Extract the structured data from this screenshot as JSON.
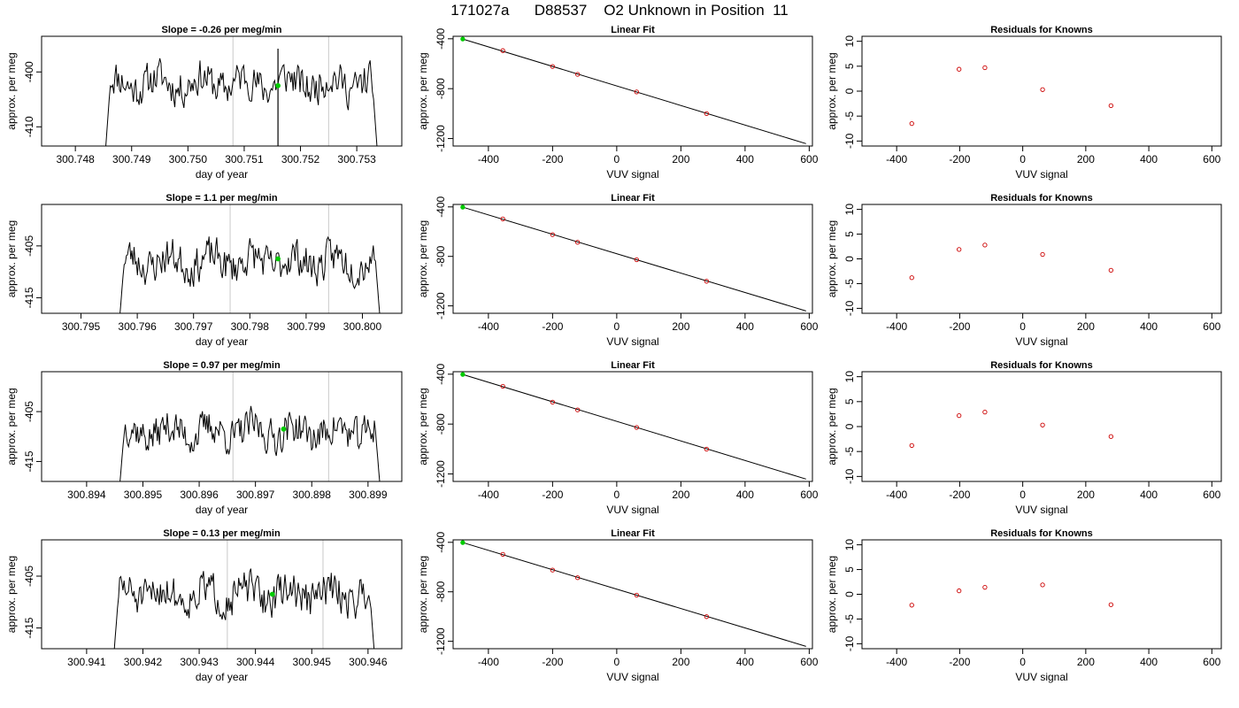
{
  "figure": {
    "title": "171027a      D88537    O2 Unknown in Position  11"
  },
  "chart_data": [
    {
      "type": "line",
      "title": "Slope =  -0.26  per meg/min",
      "xlabel": "day of year",
      "ylabel": "approx. per meg",
      "xlim": [
        300.7474,
        300.7538
      ],
      "ylim": [
        -413.5,
        -393.5
      ],
      "xticks": [
        "300.748",
        "300.749",
        "300.750",
        "300.751",
        "300.752",
        "300.753"
      ],
      "xtick_values": [
        300.748,
        300.749,
        300.75,
        300.751,
        300.752,
        300.753
      ],
      "yticks": [
        "-410",
        "-400"
      ],
      "ytick_values": [
        -410,
        -400
      ],
      "vlines": [
        300.7508,
        300.7525
      ],
      "marker": {
        "x": 300.7516,
        "y": -402.5,
        "color": "#00cc00"
      },
      "trace": {
        "x_start": 300.7485,
        "x_end": 300.7534,
        "baseline": -402,
        "jitter": 3,
        "seed": 11,
        "spike_at": 300.7516
      }
    },
    {
      "type": "scatter",
      "title": "Linear Fit",
      "xlabel": "VUV signal",
      "ylabel": "approx. per meg",
      "xlim": [
        -510,
        610
      ],
      "ylim": [
        -1260,
        -380
      ],
      "xticks": [
        "-400",
        "-200",
        "0",
        "200",
        "400",
        "600"
      ],
      "xtick_values": [
        -400,
        -200,
        0,
        200,
        400,
        600
      ],
      "yticks": [
        "-1200",
        "-800",
        "-400"
      ],
      "ytick_values": [
        -1200,
        -800,
        -400
      ],
      "points": [
        {
          "x": -480,
          "y": -402,
          "color": "#00cc00"
        },
        {
          "x": -355,
          "y": -495,
          "color": "#cc0000"
        },
        {
          "x": -200,
          "y": -622,
          "color": "#cc0000"
        },
        {
          "x": -122,
          "y": -685,
          "color": "#cc0000"
        },
        {
          "x": 62,
          "y": -826,
          "color": "#cc0000"
        },
        {
          "x": 280,
          "y": -1000,
          "color": "#cc0000"
        }
      ],
      "fit_line": {
        "x": [
          -480,
          590
        ],
        "y": [
          -402,
          -1241
        ]
      }
    },
    {
      "type": "scatter",
      "title": "Residuals for Knowns",
      "xlabel": "VUV signal",
      "ylabel": "approx. per meg",
      "xlim": [
        -510,
        630
      ],
      "ylim": [
        -11,
        11
      ],
      "xticks": [
        "-400",
        "-200",
        "0",
        "200",
        "400",
        "600"
      ],
      "xtick_values": [
        -400,
        -200,
        0,
        200,
        400,
        600
      ],
      "yticks": [
        "-10",
        "-5",
        "0",
        "5",
        "10"
      ],
      "ytick_values": [
        -10,
        -5,
        0,
        5,
        10
      ],
      "points": [
        {
          "x": -352,
          "y": -6.5,
          "color": "#cc0000"
        },
        {
          "x": -202,
          "y": 4.4,
          "color": "#cc0000"
        },
        {
          "x": -120,
          "y": 4.7,
          "color": "#cc0000"
        },
        {
          "x": 63,
          "y": 0.3,
          "color": "#cc0000"
        },
        {
          "x": 280,
          "y": -2.9,
          "color": "#cc0000"
        }
      ]
    },
    {
      "type": "line",
      "title": "Slope =  1.1  per meg/min",
      "xlabel": "day of year",
      "ylabel": "approx. per meg",
      "xlim": [
        300.7943,
        300.8007
      ],
      "ylim": [
        -418,
        -397
      ],
      "xticks": [
        "300.795",
        "300.796",
        "300.797",
        "300.798",
        "300.799",
        "300.800"
      ],
      "xtick_values": [
        300.795,
        300.796,
        300.797,
        300.798,
        300.799,
        300.8
      ],
      "yticks": [
        "-415",
        "-405"
      ],
      "ytick_values": [
        -415,
        -405
      ],
      "vlines": [
        300.79765,
        300.7994
      ],
      "marker": {
        "x": 300.7985,
        "y": -407.5,
        "color": "#00cc00"
      },
      "trace": {
        "x_start": 300.79565,
        "x_end": 300.80035,
        "baseline": -408,
        "jitter": 3.2,
        "seed": 23,
        "spike_at": null
      }
    },
    {
      "type": "scatter",
      "title": "Linear Fit",
      "xlabel": "VUV signal",
      "ylabel": "approx. per meg",
      "xlim": [
        -510,
        610
      ],
      "ylim": [
        -1260,
        -380
      ],
      "xticks": [
        "-400",
        "-200",
        "0",
        "200",
        "400",
        "600"
      ],
      "xtick_values": [
        -400,
        -200,
        0,
        200,
        400,
        600
      ],
      "yticks": [
        "-1200",
        "-800",
        "-400"
      ],
      "ytick_values": [
        -1200,
        -800,
        -400
      ],
      "points": [
        {
          "x": -480,
          "y": -402,
          "color": "#00cc00"
        },
        {
          "x": -355,
          "y": -497,
          "color": "#cc0000"
        },
        {
          "x": -200,
          "y": -624,
          "color": "#cc0000"
        },
        {
          "x": -122,
          "y": -686,
          "color": "#cc0000"
        },
        {
          "x": 62,
          "y": -827,
          "color": "#cc0000"
        },
        {
          "x": 280,
          "y": -1001,
          "color": "#cc0000"
        }
      ],
      "fit_line": {
        "x": [
          -480,
          590
        ],
        "y": [
          -402,
          -1241
        ]
      }
    },
    {
      "type": "scatter",
      "title": "Residuals for Knowns",
      "xlabel": "VUV signal",
      "ylabel": "approx. per meg",
      "xlim": [
        -510,
        630
      ],
      "ylim": [
        -11,
        11
      ],
      "xticks": [
        "-400",
        "-200",
        "0",
        "200",
        "400",
        "600"
      ],
      "xtick_values": [
        -400,
        -200,
        0,
        200,
        400,
        600
      ],
      "yticks": [
        "-10",
        "-5",
        "0",
        "5",
        "10"
      ],
      "ytick_values": [
        -10,
        -5,
        0,
        5,
        10
      ],
      "points": [
        {
          "x": -352,
          "y": -3.8,
          "color": "#cc0000"
        },
        {
          "x": -202,
          "y": 1.9,
          "color": "#cc0000"
        },
        {
          "x": -120,
          "y": 2.8,
          "color": "#cc0000"
        },
        {
          "x": 63,
          "y": 0.9,
          "color": "#cc0000"
        },
        {
          "x": 280,
          "y": -2.3,
          "color": "#cc0000"
        }
      ]
    },
    {
      "type": "line",
      "title": "Slope =  0.97  per meg/min",
      "xlabel": "day of year",
      "ylabel": "approx. per meg",
      "xlim": [
        300.8932,
        300.8996
      ],
      "ylim": [
        -419,
        -397
      ],
      "xticks": [
        "300.894",
        "300.895",
        "300.896",
        "300.897",
        "300.898",
        "300.899"
      ],
      "xtick_values": [
        300.894,
        300.895,
        300.896,
        300.897,
        300.898,
        300.899
      ],
      "yticks": [
        "-415",
        "-405"
      ],
      "ytick_values": [
        -415,
        -405
      ],
      "vlines": [
        300.8966,
        300.8983
      ],
      "marker": {
        "x": 300.8975,
        "y": -408.5,
        "color": "#00cc00"
      },
      "trace": {
        "x_start": 300.89455,
        "x_end": 300.89925,
        "baseline": -409,
        "jitter": 3.2,
        "seed": 37,
        "spike_at": null
      }
    },
    {
      "type": "scatter",
      "title": "Linear Fit",
      "xlabel": "VUV signal",
      "ylabel": "approx. per meg",
      "xlim": [
        -510,
        610
      ],
      "ylim": [
        -1260,
        -380
      ],
      "xticks": [
        "-400",
        "-200",
        "0",
        "200",
        "400",
        "600"
      ],
      "xtick_values": [
        -400,
        -200,
        0,
        200,
        400,
        600
      ],
      "yticks": [
        "-1200",
        "-800",
        "-400"
      ],
      "ytick_values": [
        -1200,
        -800,
        -400
      ],
      "points": [
        {
          "x": -480,
          "y": -402,
          "color": "#00cc00"
        },
        {
          "x": -355,
          "y": -497,
          "color": "#cc0000"
        },
        {
          "x": -200,
          "y": -624,
          "color": "#cc0000"
        },
        {
          "x": -122,
          "y": -686,
          "color": "#cc0000"
        },
        {
          "x": 62,
          "y": -827,
          "color": "#cc0000"
        },
        {
          "x": 280,
          "y": -1001,
          "color": "#cc0000"
        }
      ],
      "fit_line": {
        "x": [
          -480,
          590
        ],
        "y": [
          -402,
          -1241
        ]
      }
    },
    {
      "type": "scatter",
      "title": "Residuals for Knowns",
      "xlabel": "VUV signal",
      "ylabel": "approx. per meg",
      "xlim": [
        -510,
        630
      ],
      "ylim": [
        -11,
        11
      ],
      "xticks": [
        "-400",
        "-200",
        "0",
        "200",
        "400",
        "600"
      ],
      "xtick_values": [
        -400,
        -200,
        0,
        200,
        400,
        600
      ],
      "yticks": [
        "-10",
        "-5",
        "0",
        "5",
        "10"
      ],
      "ytick_values": [
        -10,
        -5,
        0,
        5,
        10
      ],
      "points": [
        {
          "x": -352,
          "y": -3.8,
          "color": "#cc0000"
        },
        {
          "x": -202,
          "y": 2.2,
          "color": "#cc0000"
        },
        {
          "x": -120,
          "y": 2.9,
          "color": "#cc0000"
        },
        {
          "x": 63,
          "y": 0.3,
          "color": "#cc0000"
        },
        {
          "x": 280,
          "y": -2.0,
          "color": "#cc0000"
        }
      ]
    },
    {
      "type": "line",
      "title": "Slope =  0.13  per meg/min",
      "xlabel": "day of year",
      "ylabel": "approx. per meg",
      "xlim": [
        300.9402,
        300.9466
      ],
      "ylim": [
        -419,
        -398
      ],
      "xticks": [
        "300.941",
        "300.942",
        "300.943",
        "300.944",
        "300.945",
        "300.946"
      ],
      "xtick_values": [
        300.941,
        300.942,
        300.943,
        300.944,
        300.945,
        300.946
      ],
      "yticks": [
        "-415",
        "-405"
      ],
      "ytick_values": [
        -415,
        -405
      ],
      "vlines": [
        300.9435,
        300.9452
      ],
      "marker": {
        "x": 300.9443,
        "y": -408.5,
        "color": "#00cc00"
      },
      "trace": {
        "x_start": 300.94145,
        "x_end": 300.94615,
        "baseline": -408.5,
        "jitter": 3.2,
        "seed": 51,
        "spike_at": null
      }
    },
    {
      "type": "scatter",
      "title": "Linear Fit",
      "xlabel": "VUV signal",
      "ylabel": "approx. per meg",
      "xlim": [
        -510,
        610
      ],
      "ylim": [
        -1260,
        -380
      ],
      "xticks": [
        "-400",
        "-200",
        "0",
        "200",
        "400",
        "600"
      ],
      "xtick_values": [
        -400,
        -200,
        0,
        200,
        400,
        600
      ],
      "yticks": [
        "-1200",
        "-800",
        "-400"
      ],
      "ytick_values": [
        -1200,
        -800,
        -400
      ],
      "points": [
        {
          "x": -480,
          "y": -402,
          "color": "#00cc00"
        },
        {
          "x": -355,
          "y": -497,
          "color": "#cc0000"
        },
        {
          "x": -200,
          "y": -624,
          "color": "#cc0000"
        },
        {
          "x": -122,
          "y": -686,
          "color": "#cc0000"
        },
        {
          "x": 62,
          "y": -827,
          "color": "#cc0000"
        },
        {
          "x": 280,
          "y": -1001,
          "color": "#cc0000"
        }
      ],
      "fit_line": {
        "x": [
          -480,
          590
        ],
        "y": [
          -402,
          -1241
        ]
      }
    },
    {
      "type": "scatter",
      "title": "Residuals for Knowns",
      "xlabel": "VUV signal",
      "ylabel": "approx. per meg",
      "xlim": [
        -510,
        630
      ],
      "ylim": [
        -11,
        11
      ],
      "xticks": [
        "-400",
        "-200",
        "0",
        "200",
        "400",
        "600"
      ],
      "xtick_values": [
        -400,
        -200,
        0,
        200,
        400,
        600
      ],
      "yticks": [
        "-10",
        "-5",
        "0",
        "5",
        "10"
      ],
      "ytick_values": [
        -10,
        -5,
        0,
        5,
        10
      ],
      "points": [
        {
          "x": -352,
          "y": -2.2,
          "color": "#cc0000"
        },
        {
          "x": -202,
          "y": 0.7,
          "color": "#cc0000"
        },
        {
          "x": -120,
          "y": 1.4,
          "color": "#cc0000"
        },
        {
          "x": 63,
          "y": 1.9,
          "color": "#cc0000"
        },
        {
          "x": 280,
          "y": -2.1,
          "color": "#cc0000"
        }
      ]
    }
  ]
}
